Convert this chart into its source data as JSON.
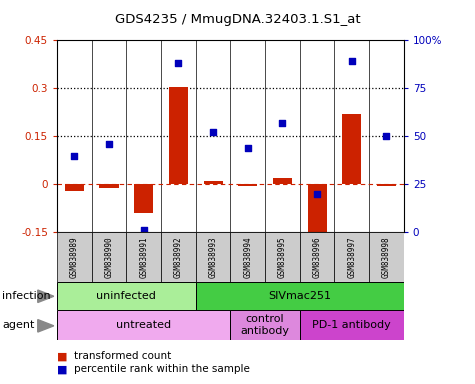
{
  "title": "GDS4235 / MmugDNA.32403.1.S1_at",
  "samples": [
    "GSM838989",
    "GSM838990",
    "GSM838991",
    "GSM838992",
    "GSM838993",
    "GSM838994",
    "GSM838995",
    "GSM838996",
    "GSM838997",
    "GSM838998"
  ],
  "transformed_counts": [
    -0.02,
    -0.01,
    -0.09,
    0.305,
    0.01,
    -0.005,
    0.02,
    -0.19,
    0.22,
    -0.005
  ],
  "percentile_ranks": [
    40,
    46,
    1,
    88,
    52,
    44,
    57,
    20,
    89,
    50
  ],
  "ylim_left": [
    -0.15,
    0.45
  ],
  "ylim_right": [
    0,
    100
  ],
  "yticks_left": [
    -0.15,
    0,
    0.15,
    0.3,
    0.45
  ],
  "yticks_right": [
    0,
    25,
    50,
    75,
    100
  ],
  "hlines": [
    0.15,
    0.3
  ],
  "bar_color": "#cc2200",
  "dot_color": "#0000bb",
  "infection_groups": [
    {
      "label": "uninfected",
      "start": 0,
      "end": 4,
      "color": "#aaee99"
    },
    {
      "label": "SIVmac251",
      "start": 4,
      "end": 10,
      "color": "#44cc44"
    }
  ],
  "agent_groups": [
    {
      "label": "untreated",
      "start": 0,
      "end": 5,
      "color": "#f0aaee"
    },
    {
      "label": "control\nantibody",
      "start": 5,
      "end": 7,
      "color": "#dd88dd"
    },
    {
      "label": "PD-1 antibody",
      "start": 7,
      "end": 10,
      "color": "#cc44cc"
    }
  ],
  "legend_items": [
    {
      "label": "transformed count",
      "color": "#cc2200"
    },
    {
      "label": "percentile rank within the sample",
      "color": "#0000bb"
    }
  ],
  "infection_label": "infection",
  "agent_label": "agent"
}
